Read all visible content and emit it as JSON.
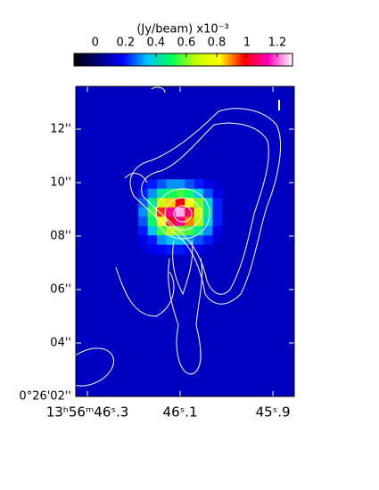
{
  "chart_data": {
    "type": "heatmap",
    "colorbar": {
      "label": "(Jy/beam)  x10⁻³",
      "clim": [
        -0.14,
        1.3
      ],
      "ticks": [
        0,
        0.2,
        0.4,
        0.6,
        0.8,
        1,
        1.2
      ]
    },
    "colormap": [
      "#000000",
      "#000080",
      "#0000ff",
      "#00c0ff",
      "#00ff60",
      "#c0ff00",
      "#ffff00",
      "#ff0000",
      "#ff00c0",
      "#ffffff"
    ],
    "xlim": [
      46.325,
      45.854
    ],
    "ylim": [
      2,
      13.6
    ],
    "xticks": [
      {
        "value": 46.3,
        "label": "13ʰ56ᵐ46ˢ.3"
      },
      {
        "value": 46.1,
        "label": "46ˢ.1"
      },
      {
        "value": 45.9,
        "label": "45ˢ.9"
      }
    ],
    "yticks": [
      {
        "value": 2,
        "label": "0°26'02''"
      },
      {
        "value": 4,
        "label": "04''"
      },
      {
        "value": 6,
        "label": "06''"
      },
      {
        "value": 8,
        "label": "08''"
      },
      {
        "value": 10,
        "label": "10''"
      },
      {
        "value": 12,
        "label": "12''"
      }
    ],
    "background": 0.1,
    "x": [
      46.18,
      46.16,
      46.14,
      46.12,
      46.1,
      46.08,
      46.06,
      46.04,
      46.02
    ],
    "y": [
      9.95,
      9.6,
      9.25,
      8.9,
      8.55,
      8.2,
      7.85,
      7.5
    ],
    "values": [
      [
        0.15,
        0.2,
        0.25,
        0.3,
        0.3,
        0.25,
        0.2,
        0.15,
        0.12
      ],
      [
        0.2,
        0.3,
        0.45,
        0.5,
        0.55,
        0.5,
        0.35,
        0.25,
        0.15
      ],
      [
        0.25,
        0.45,
        0.7,
        0.85,
        1.0,
        0.8,
        0.6,
        0.4,
        0.2
      ],
      [
        0.3,
        0.55,
        0.95,
        1.1,
        1.25,
        1.05,
        0.7,
        0.45,
        0.2
      ],
      [
        0.25,
        0.5,
        0.8,
        1.0,
        1.1,
        0.9,
        0.65,
        0.4,
        0.2
      ],
      [
        0.2,
        0.35,
        0.55,
        0.65,
        0.6,
        0.55,
        0.45,
        0.3,
        0.15
      ],
      [
        0.15,
        0.2,
        0.3,
        0.35,
        0.35,
        0.3,
        0.25,
        0.2,
        0.12
      ],
      [
        0.12,
        0.15,
        0.18,
        0.2,
        0.2,
        0.18,
        0.15,
        0.12,
        0.1
      ]
    ]
  }
}
